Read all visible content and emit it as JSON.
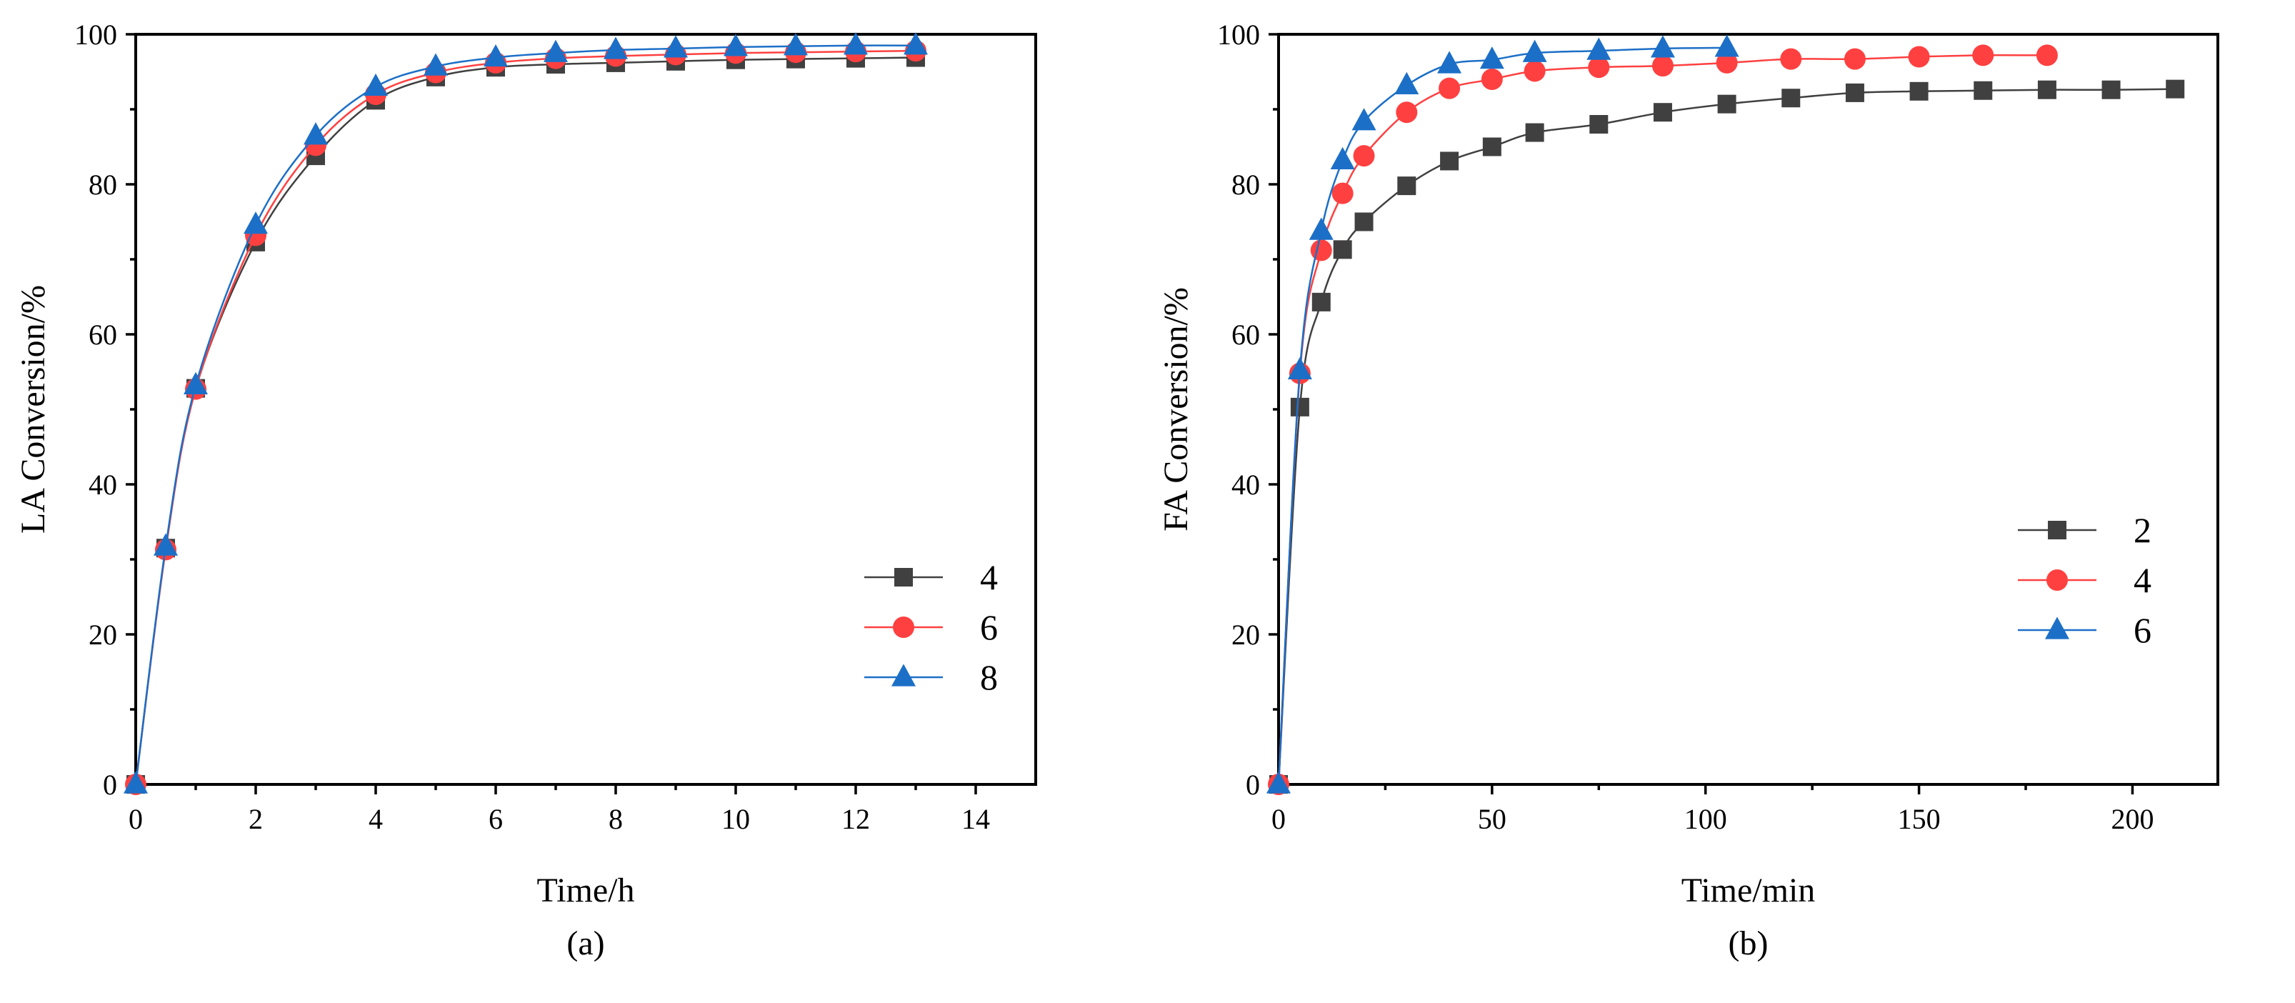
{
  "chart_data": [
    {
      "type": "line",
      "caption": "(a)",
      "xlabel": "Time/h",
      "ylabel": "LA Conversion/%",
      "xlim": [
        0,
        15
      ],
      "ylim": [
        0,
        100
      ],
      "xticks": [
        0,
        2,
        4,
        6,
        8,
        10,
        12,
        14
      ],
      "yticks": [
        0,
        20,
        40,
        60,
        80,
        100
      ],
      "legend_position": "center-right",
      "series": [
        {
          "name": "4",
          "color": "#404040",
          "marker": "square",
          "x": [
            0,
            0.5,
            1,
            2,
            3,
            4,
            5,
            6,
            7,
            8,
            9,
            10,
            11,
            12,
            13
          ],
          "y": [
            0,
            31.5,
            52.8,
            72.3,
            83.8,
            91.2,
            94.3,
            95.6,
            96.0,
            96.2,
            96.4,
            96.6,
            96.7,
            96.8,
            96.9
          ]
        },
        {
          "name": "6",
          "color": "#ff4040",
          "marker": "circle",
          "x": [
            0,
            0.5,
            1,
            2,
            3,
            4,
            5,
            6,
            7,
            8,
            9,
            10,
            11,
            12,
            13
          ],
          "y": [
            0,
            31.3,
            52.7,
            73.2,
            85.2,
            92.0,
            94.9,
            96.2,
            96.8,
            97.1,
            97.3,
            97.5,
            97.6,
            97.7,
            97.8
          ]
        },
        {
          "name": "8",
          "color": "#1c6fc7",
          "marker": "triangle",
          "x": [
            0,
            0.5,
            1,
            2,
            3,
            4,
            5,
            6,
            7,
            8,
            9,
            10,
            11,
            12,
            13
          ],
          "y": [
            0,
            31.7,
            53.2,
            74.6,
            86.5,
            93.0,
            95.7,
            96.9,
            97.5,
            97.9,
            98.1,
            98.3,
            98.4,
            98.5,
            98.5
          ]
        }
      ]
    },
    {
      "type": "line",
      "caption": "(b)",
      "xlabel": "Time/min",
      "ylabel": "FA Conversion/%",
      "xlim": [
        0,
        220
      ],
      "ylim": [
        0,
        100
      ],
      "xticks": [
        0,
        50,
        100,
        150,
        200
      ],
      "yticks": [
        0,
        20,
        40,
        60,
        80,
        100
      ],
      "legend_position": "center-right",
      "series": [
        {
          "name": "2",
          "color": "#404040",
          "marker": "square",
          "x": [
            0,
            5,
            10,
            15,
            20,
            30,
            40,
            50,
            60,
            75,
            90,
            105,
            120,
            135,
            150,
            165,
            180,
            195,
            210
          ],
          "y": [
            0,
            50.3,
            64.3,
            71.3,
            75.0,
            79.8,
            83.1,
            85.0,
            86.9,
            88.0,
            89.6,
            90.7,
            91.5,
            92.2,
            92.4,
            92.5,
            92.6,
            92.6,
            92.7
          ]
        },
        {
          "name": "4",
          "color": "#ff4040",
          "marker": "circle",
          "x": [
            0,
            5,
            10,
            15,
            20,
            30,
            40,
            50,
            60,
            75,
            90,
            105,
            120,
            135,
            150,
            165,
            180
          ],
          "y": [
            0,
            54.8,
            71.2,
            78.8,
            83.8,
            89.6,
            92.8,
            94.0,
            95.1,
            95.6,
            95.8,
            96.2,
            96.7,
            96.7,
            97.0,
            97.2,
            97.2
          ]
        },
        {
          "name": "6",
          "color": "#1c6fc7",
          "marker": "triangle",
          "x": [
            0,
            5,
            10,
            15,
            20,
            30,
            40,
            50,
            60,
            75,
            90,
            105
          ],
          "y": [
            0,
            55.2,
            73.8,
            83.2,
            88.4,
            93.2,
            96.0,
            96.6,
            97.5,
            97.8,
            98.1,
            98.2
          ]
        }
      ]
    }
  ]
}
